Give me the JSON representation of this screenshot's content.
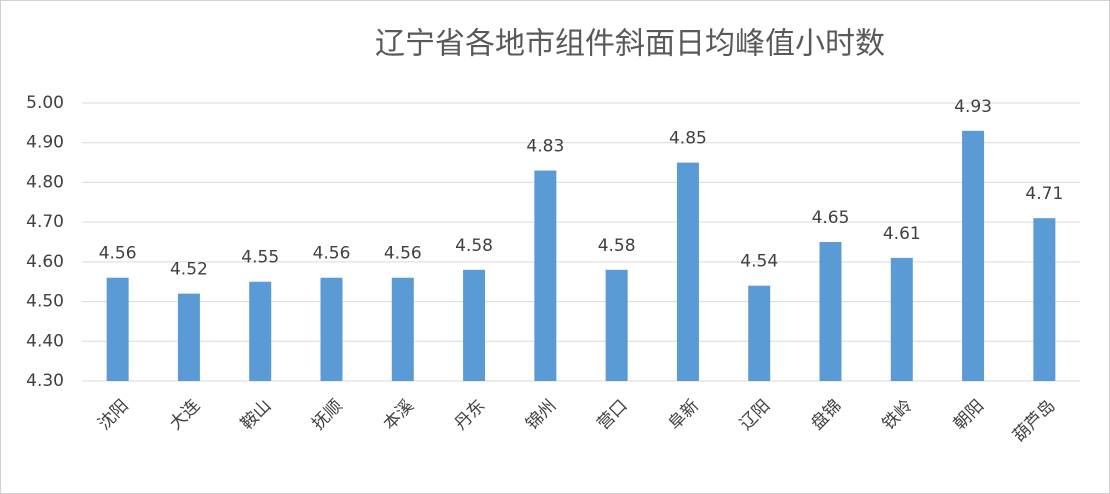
{
  "chart_data": {
    "type": "bar",
    "title": "辽宁省各地市组件斜面日均峰值小时数",
    "categories": [
      "沈阳",
      "大连",
      "鞍山",
      "抚顺",
      "本溪",
      "丹东",
      "锦州",
      "营口",
      "阜新",
      "辽阳",
      "盘锦",
      "铁岭",
      "朝阳",
      "葫芦岛"
    ],
    "values": [
      4.56,
      4.52,
      4.55,
      4.56,
      4.56,
      4.58,
      4.83,
      4.58,
      4.85,
      4.54,
      4.65,
      4.61,
      4.93,
      4.71
    ],
    "color": "#5b9bd5",
    "ylim": [
      4.3,
      5.0
    ],
    "yticks": [
      {
        "value": 4.3,
        "label": "4.30"
      },
      {
        "value": 4.4,
        "label": "4.40"
      },
      {
        "value": 4.5,
        "label": "4.50"
      },
      {
        "value": 4.6,
        "label": "4.60"
      },
      {
        "value": 4.7,
        "label": "4.70"
      },
      {
        "value": 4.8,
        "label": "4.80"
      },
      {
        "value": 4.9,
        "label": "4.90"
      },
      {
        "value": 5.0,
        "label": "5.00"
      }
    ],
    "grid": true
  }
}
